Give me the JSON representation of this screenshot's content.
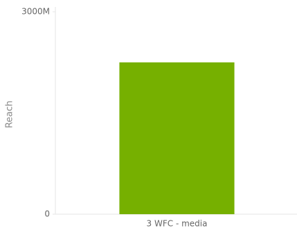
{
  "chart_data": {
    "type": "bar",
    "y_label": "Reach",
    "categories": [
      "3 WFC - media"
    ],
    "values": [
      2250
    ],
    "color": "#76b000",
    "ylim": [
      0,
      3000
    ],
    "yticks": [
      0,
      {
        "value": 3000,
        "label": "3000M"
      }
    ]
  }
}
